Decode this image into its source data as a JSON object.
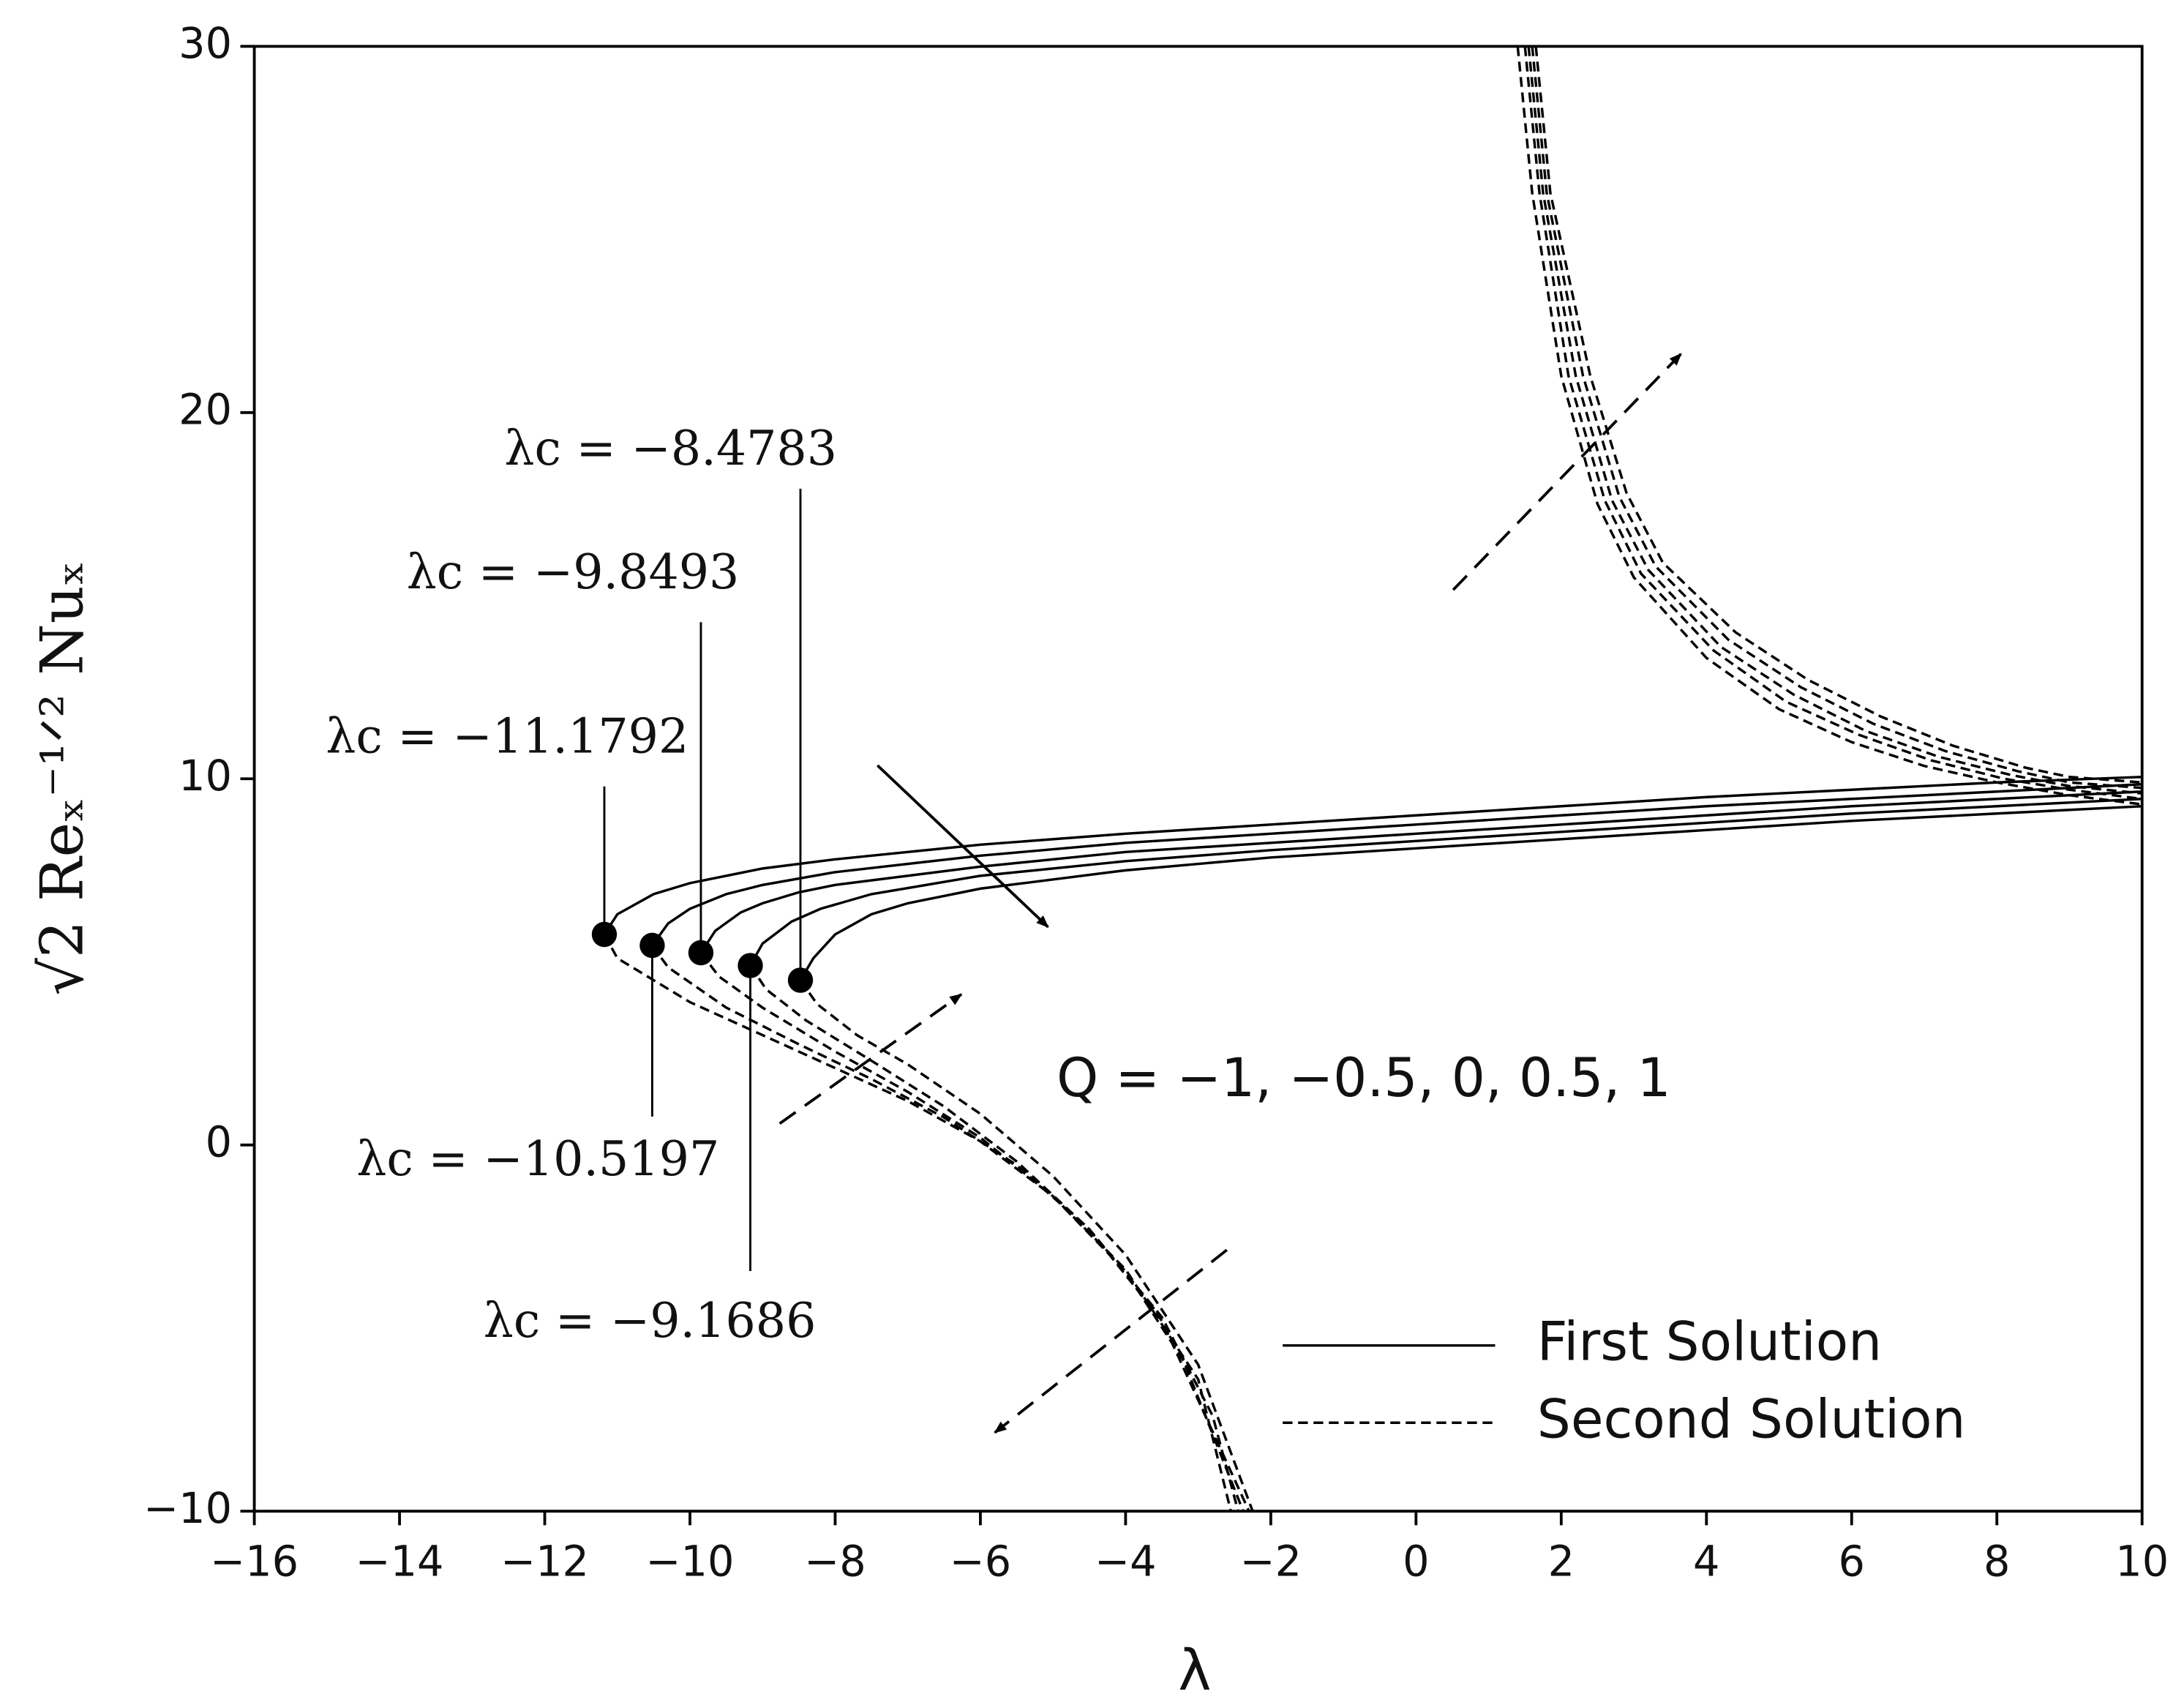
{
  "chart_data": {
    "type": "line",
    "xlabel": "λ",
    "ylabel": "√2 Reₓ⁻¹ᐟ² Nuₓ",
    "xlim": [
      -16,
      10
    ],
    "ylim": [
      -10,
      30
    ],
    "xticks": [
      {
        "value": -16,
        "label": "−16"
      },
      {
        "value": -14,
        "label": "−14"
      },
      {
        "value": -12,
        "label": "−12"
      },
      {
        "value": -10,
        "label": "−10"
      },
      {
        "value": -8,
        "label": "−8"
      },
      {
        "value": -6,
        "label": "−6"
      },
      {
        "value": -4,
        "label": "−4"
      },
      {
        "value": -2,
        "label": "−2"
      },
      0,
      2,
      4,
      6,
      8,
      10
    ],
    "yticks": [
      {
        "value": -10,
        "label": "−10"
      },
      0,
      10,
      20,
      30
    ],
    "legend": [
      {
        "label": "First Solution",
        "dashed": false
      },
      {
        "label": "Second Solution",
        "dashed": true
      }
    ],
    "annotation": "Q = −1, −0.5, 0, 0.5, 1",
    "critical_points": [
      {
        "x": -11.1792,
        "y": 5.75,
        "label": "λc = −11.1792"
      },
      {
        "x": -10.5197,
        "y": 5.45,
        "label": "λc = −10.5197"
      },
      {
        "x": -9.8493,
        "y": 5.25,
        "label": "λc = −9.8493"
      },
      {
        "x": -9.1686,
        "y": 4.9,
        "label": "λc =  −9.1686"
      },
      {
        "x": -8.4783,
        "y": 4.5,
        "label": "λc = −8.4783"
      }
    ],
    "series": [
      {
        "dashed": false,
        "color": "#000000",
        "x": [
          -11.1792,
          -11,
          -10.5,
          -10,
          -9,
          -8,
          -6,
          -4,
          -2,
          0,
          2,
          4,
          6,
          8,
          10
        ],
        "values": [
          5.75,
          6.3,
          6.85,
          7.15,
          7.55,
          7.8,
          8.2,
          8.5,
          8.75,
          9.0,
          9.25,
          9.5,
          9.7,
          9.9,
          10.05
        ]
      },
      {
        "dashed": false,
        "color": "#000000",
        "x": [
          -10.5197,
          -10.3,
          -10,
          -9.5,
          -9,
          -8,
          -6,
          -4,
          -2,
          0,
          2,
          4,
          6,
          8,
          10
        ],
        "values": [
          5.45,
          6.05,
          6.45,
          6.85,
          7.1,
          7.45,
          7.9,
          8.25,
          8.5,
          8.75,
          9.0,
          9.25,
          9.45,
          9.65,
          9.85
        ]
      },
      {
        "dashed": false,
        "color": "#000000",
        "x": [
          -9.8493,
          -9.65,
          -9.3,
          -9,
          -8.5,
          -8,
          -6,
          -4,
          -2,
          0,
          2,
          4,
          6,
          8,
          10
        ],
        "values": [
          5.25,
          5.85,
          6.35,
          6.6,
          6.9,
          7.1,
          7.6,
          8.0,
          8.25,
          8.5,
          8.75,
          9.0,
          9.25,
          9.45,
          9.65
        ]
      },
      {
        "dashed": false,
        "color": "#000000",
        "x": [
          -9.1686,
          -9,
          -8.6,
          -8.2,
          -7.5,
          -6,
          -4,
          -2,
          0,
          2,
          4,
          6,
          8,
          10
        ],
        "values": [
          4.9,
          5.5,
          6.1,
          6.45,
          6.85,
          7.35,
          7.75,
          8.05,
          8.3,
          8.55,
          8.8,
          9.05,
          9.25,
          9.45
        ]
      },
      {
        "dashed": false,
        "color": "#000000",
        "x": [
          -8.4783,
          -8.3,
          -8,
          -7.5,
          -7,
          -6,
          -4,
          -2,
          0,
          2,
          4,
          6,
          8,
          10
        ],
        "values": [
          4.5,
          5.1,
          5.75,
          6.3,
          6.6,
          7.0,
          7.5,
          7.85,
          8.1,
          8.35,
          8.6,
          8.85,
          9.05,
          9.25
        ]
      },
      {
        "dashed": true,
        "color": "#000000",
        "x": [
          -11.1792,
          -11,
          -10,
          -9,
          -8,
          -7,
          -6,
          -5,
          -4,
          -3,
          -2.55
        ],
        "values": [
          5.75,
          5.1,
          3.9,
          3.0,
          2.1,
          1.2,
          0.1,
          -1.4,
          -3.4,
          -6.4,
          -10
        ]
      },
      {
        "dashed": true,
        "color": "#000000",
        "x": [
          -10.5197,
          -10.3,
          -9.5,
          -8.5,
          -7.5,
          -6.5,
          -5.5,
          -4.5,
          -3.5,
          -2.8,
          -2.45
        ],
        "values": [
          5.45,
          4.85,
          3.75,
          2.75,
          1.8,
          0.75,
          -0.55,
          -2.3,
          -4.7,
          -7.4,
          -10
        ]
      },
      {
        "dashed": true,
        "color": "#000000",
        "x": [
          -9.8493,
          -9.6,
          -9,
          -8,
          -7,
          -6,
          -5,
          -4,
          -3.2,
          -2.38
        ],
        "values": [
          5.25,
          4.6,
          3.75,
          2.55,
          1.45,
          0.2,
          -1.4,
          -3.45,
          -5.9,
          -10
        ]
      },
      {
        "dashed": true,
        "color": "#000000",
        "x": [
          -9.1686,
          -8.95,
          -8.4,
          -7.5,
          -6.5,
          -5.5,
          -4.5,
          -3.5,
          -2.3
        ],
        "values": [
          4.9,
          4.25,
          3.4,
          2.3,
          1.05,
          -0.45,
          -2.3,
          -4.8,
          -10
        ]
      },
      {
        "dashed": true,
        "color": "#000000",
        "x": [
          -8.4783,
          -8.25,
          -7.7,
          -7,
          -6,
          -5,
          -4,
          -3,
          -2.25
        ],
        "values": [
          4.5,
          3.85,
          3.0,
          2.2,
          0.85,
          -0.85,
          -3.0,
          -6.0,
          -10
        ]
      },
      {
        "dashed": true,
        "color": "#000000",
        "x": [
          1.4,
          1.6,
          2,
          2.5,
          3,
          4,
          5,
          6,
          7,
          8,
          9,
          10
        ],
        "values": [
          30,
          26,
          21,
          17.5,
          15.5,
          13.3,
          11.9,
          11,
          10.35,
          9.9,
          9.55,
          9.3
        ]
      },
      {
        "dashed": true,
        "color": "#000000",
        "x": [
          1.5,
          1.7,
          2.1,
          2.6,
          3.1,
          4.1,
          5.1,
          6.1,
          7.1,
          8.1,
          9,
          10
        ],
        "values": [
          30,
          26,
          21,
          17.6,
          15.6,
          13.5,
          12.1,
          11.2,
          10.5,
          10.0,
          9.7,
          9.45
        ]
      },
      {
        "dashed": true,
        "color": "#000000",
        "x": [
          1.55,
          1.75,
          2.2,
          2.7,
          3.2,
          4.2,
          5.2,
          6.2,
          7.2,
          8.2,
          9,
          10
        ],
        "values": [
          30,
          26,
          21,
          17.6,
          15.7,
          13.6,
          12.3,
          11.3,
          10.6,
          10.1,
          9.8,
          9.6
        ]
      },
      {
        "dashed": true,
        "color": "#000000",
        "x": [
          1.6,
          1.8,
          2.3,
          2.8,
          3.3,
          4.3,
          5.3,
          6.3,
          7.3,
          8.3,
          9,
          10
        ],
        "values": [
          30,
          26,
          21,
          17.7,
          15.8,
          13.8,
          12.5,
          11.5,
          10.75,
          10.2,
          9.9,
          9.75
        ]
      },
      {
        "dashed": true,
        "color": "#000000",
        "x": [
          1.65,
          1.85,
          2.4,
          2.9,
          3.4,
          4.4,
          5.4,
          6.4,
          7.4,
          8.4,
          9,
          10
        ],
        "values": [
          30,
          26,
          21,
          17.8,
          15.9,
          14.0,
          12.7,
          11.7,
          10.9,
          10.3,
          10.05,
          9.9
        ]
      }
    ]
  }
}
